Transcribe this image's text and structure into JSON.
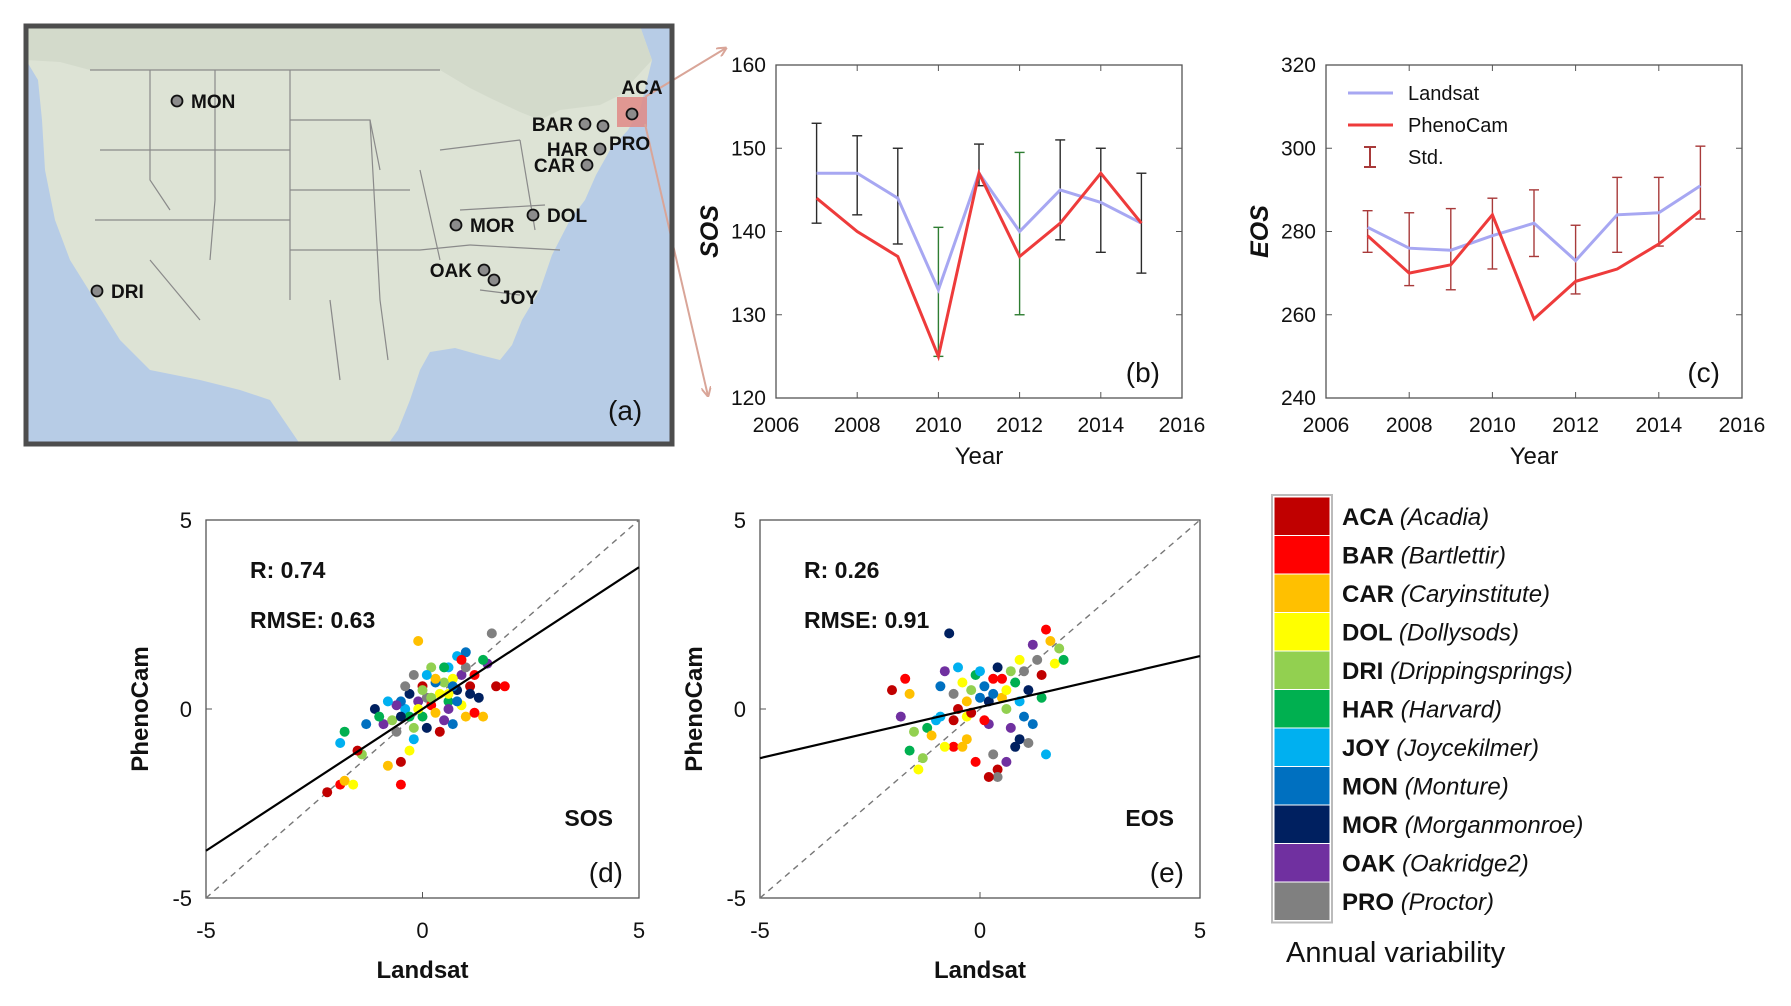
{
  "map": {
    "panel_label": "(a)",
    "sites": [
      {
        "code": "MON"
      },
      {
        "code": "ACA"
      },
      {
        "code": "BAR"
      },
      {
        "code": "PRO"
      },
      {
        "code": "HAR"
      },
      {
        "code": "CAR"
      },
      {
        "code": "MOR"
      },
      {
        "code": "DOL"
      },
      {
        "code": "OAK"
      },
      {
        "code": "JOY"
      },
      {
        "code": "DRI"
      }
    ]
  },
  "chart_data": [
    {
      "id": "b",
      "type": "line",
      "panel_label": "(b)",
      "xlabel": "Year",
      "ylabel": "SOS",
      "xlim": [
        2006,
        2016
      ],
      "ylim": [
        120,
        160
      ],
      "xticks": [
        "2006",
        "2008",
        "2010",
        "2012",
        "2014",
        "2016"
      ],
      "yticks": [
        "120",
        "130",
        "140",
        "150",
        "160"
      ],
      "x": [
        2007,
        2008,
        2009,
        2010,
        2011,
        2012,
        2013,
        2014,
        2015
      ],
      "series": [
        {
          "name": "Landsat",
          "color": "#a7a7f2",
          "values": [
            147,
            147,
            144,
            133,
            147,
            140,
            145,
            143.5,
            141
          ]
        },
        {
          "name": "PhenoCam",
          "color": "#ee3b3b",
          "values": [
            144,
            140,
            137,
            125,
            147,
            137,
            141,
            147,
            141
          ]
        }
      ],
      "errorbars": {
        "color": "#2a2a2a",
        "low": [
          141,
          142,
          138.5,
          125,
          145.5,
          130,
          139,
          137.5,
          135
        ],
        "high": [
          153,
          151.5,
          150,
          140.5,
          150.5,
          149.5,
          151,
          150,
          147
        ]
      }
    },
    {
      "id": "c",
      "type": "line",
      "panel_label": "(c)",
      "xlabel": "Year",
      "ylabel": "EOS",
      "xlim": [
        2006,
        2016
      ],
      "ylim": [
        240,
        320
      ],
      "xticks": [
        "2006",
        "2008",
        "2010",
        "2012",
        "2014",
        "2016"
      ],
      "yticks": [
        "240",
        "260",
        "280",
        "300",
        "320"
      ],
      "x": [
        2007,
        2008,
        2009,
        2010,
        2011,
        2012,
        2013,
        2014,
        2015
      ],
      "series": [
        {
          "name": "Landsat",
          "color": "#a7a7f2",
          "values": [
            281,
            276,
            275.5,
            279,
            282,
            273,
            284,
            284.5,
            291
          ]
        },
        {
          "name": "PhenoCam",
          "color": "#ee3b3b",
          "values": [
            279,
            270,
            272,
            284,
            259,
            268,
            271,
            277,
            285
          ]
        }
      ],
      "errorbars": {
        "color": "#a83a3a",
        "low": [
          275,
          267,
          266,
          271,
          274,
          265,
          275,
          276.5,
          283
        ],
        "high": [
          285,
          284.5,
          285.5,
          288,
          290,
          281.5,
          293,
          293,
          300.5
        ]
      },
      "legend": {
        "position": "top-left",
        "entries": [
          "Landsat",
          "PhenoCam",
          "Std."
        ]
      }
    },
    {
      "id": "d",
      "type": "scatter",
      "panel_label": "(d)",
      "variable": "SOS",
      "xlabel": "Landsat",
      "ylabel": "PhenoCam",
      "xlim": [
        -5,
        5
      ],
      "ylim": [
        -5,
        5
      ],
      "xticks": [
        "-5",
        "0",
        "5"
      ],
      "yticks": [
        "-5",
        "0",
        "5"
      ],
      "r_text": "R: 0.74",
      "rmse_text": "RMSE: 0.63",
      "fit_line": {
        "x": [
          -5,
          5
        ],
        "y": [
          -3.75,
          3.75
        ]
      },
      "one_to_one": {
        "x": [
          -5,
          5
        ],
        "y": [
          -5,
          5
        ]
      },
      "points": [
        [
          -2.2,
          -2.2
        ],
        [
          -1.9,
          -2.0
        ],
        [
          -1.8,
          -1.9
        ],
        [
          -1.6,
          -2.0
        ],
        [
          -1.4,
          -1.2
        ],
        [
          -1.8,
          -0.6
        ],
        [
          -1.9,
          -0.9
        ],
        [
          -1.3,
          -0.4
        ],
        [
          -1.1,
          0.0
        ],
        [
          -0.9,
          -0.4
        ],
        [
          -0.6,
          -0.6
        ],
        [
          -0.5,
          -1.4
        ],
        [
          -0.5,
          -2.0
        ],
        [
          -0.8,
          -1.5
        ],
        [
          -0.3,
          -1.1
        ],
        [
          -0.2,
          -0.5
        ],
        [
          0.0,
          -0.2
        ],
        [
          -0.4,
          0.0
        ],
        [
          -0.5,
          0.2
        ],
        [
          -0.3,
          0.4
        ],
        [
          -0.1,
          0.2
        ],
        [
          0.1,
          0.3
        ],
        [
          0.0,
          0.6
        ],
        [
          0.2,
          0.1
        ],
        [
          0.3,
          -0.1
        ],
        [
          0.4,
          0.4
        ],
        [
          0.5,
          0.7
        ],
        [
          0.6,
          0.2
        ],
        [
          0.6,
          1.1
        ],
        [
          0.7,
          -0.4
        ],
        [
          0.8,
          0.5
        ],
        [
          0.9,
          0.9
        ],
        [
          1.0,
          1.1
        ],
        [
          1.1,
          0.6
        ],
        [
          1.2,
          0.9
        ],
        [
          1.0,
          -0.2
        ],
        [
          0.7,
          0.8
        ],
        [
          0.2,
          1.1
        ],
        [
          0.5,
          1.1
        ],
        [
          0.8,
          1.4
        ],
        [
          1.0,
          1.5
        ],
        [
          1.3,
          0.3
        ],
        [
          1.5,
          1.2
        ],
        [
          1.6,
          2.0
        ],
        [
          1.7,
          0.6
        ],
        [
          1.9,
          0.6
        ],
        [
          1.4,
          -0.2
        ],
        [
          0.9,
          0.1
        ],
        [
          -0.7,
          -0.3
        ],
        [
          -1.0,
          -0.2
        ],
        [
          -0.2,
          -0.8
        ],
        [
          0.3,
          0.7
        ],
        [
          0.1,
          -0.5
        ],
        [
          -0.6,
          0.1
        ],
        [
          -0.2,
          0.9
        ],
        [
          0.4,
          -0.6
        ],
        [
          1.2,
          -0.1
        ],
        [
          -0.1,
          1.8
        ],
        [
          0.6,
          0.4
        ],
        [
          0.2,
          0.3
        ],
        [
          -0.3,
          -0.2
        ],
        [
          -0.8,
          0.2
        ],
        [
          0.8,
          0.2
        ],
        [
          1.1,
          0.4
        ],
        [
          0.5,
          -0.3
        ],
        [
          -0.4,
          0.6
        ],
        [
          -1.5,
          -1.1
        ],
        [
          0.9,
          1.3
        ],
        [
          0.3,
          0.8
        ],
        [
          -0.1,
          0.0
        ],
        [
          0.0,
          0.5
        ],
        [
          1.4,
          1.3
        ],
        [
          0.1,
          0.9
        ],
        [
          0.7,
          0.6
        ],
        [
          -0.5,
          -0.2
        ],
        [
          0.6,
          0.0
        ]
      ]
    },
    {
      "id": "e",
      "type": "scatter",
      "panel_label": "(e)",
      "variable": "EOS",
      "xlabel": "Landsat",
      "ylabel": "PhenoCam",
      "xlim": [
        -5,
        5
      ],
      "ylim": [
        -5,
        5
      ],
      "xticks": [
        "-5",
        "0",
        "5"
      ],
      "yticks": [
        "-5",
        "0",
        "5"
      ],
      "r_text": "R: 0.26",
      "rmse_text": "RMSE: 0.91",
      "fit_line": {
        "x": [
          -5,
          5
        ],
        "y": [
          -1.3,
          1.4
        ]
      },
      "one_to_one": {
        "x": [
          -5,
          5
        ],
        "y": [
          -5,
          5
        ]
      },
      "points": [
        [
          -2.0,
          0.5
        ],
        [
          -1.7,
          0.8
        ],
        [
          -1.6,
          0.4
        ],
        [
          -1.4,
          -1.6
        ],
        [
          -1.5,
          -0.6
        ],
        [
          -1.2,
          -0.5
        ],
        [
          -1.0,
          -0.3
        ],
        [
          -0.9,
          0.6
        ],
        [
          -0.7,
          2.0
        ],
        [
          -0.8,
          1.0
        ],
        [
          -0.6,
          0.4
        ],
        [
          -0.5,
          0.0
        ],
        [
          -0.6,
          -1.0
        ],
        [
          -0.4,
          -1.0
        ],
        [
          -0.3,
          -0.2
        ],
        [
          -0.2,
          0.5
        ],
        [
          -0.1,
          0.9
        ],
        [
          0.0,
          1.0
        ],
        [
          0.1,
          0.6
        ],
        [
          0.2,
          0.2
        ],
        [
          0.2,
          -0.4
        ],
        [
          0.3,
          -1.2
        ],
        [
          0.4,
          -1.6
        ],
        [
          0.3,
          0.8
        ],
        [
          0.5,
          0.3
        ],
        [
          0.6,
          0.5
        ],
        [
          0.7,
          1.0
        ],
        [
          0.8,
          0.7
        ],
        [
          0.9,
          0.2
        ],
        [
          1.0,
          -0.2
        ],
        [
          1.1,
          0.5
        ],
        [
          1.2,
          1.7
        ],
        [
          1.3,
          1.3
        ],
        [
          1.4,
          0.9
        ],
        [
          1.5,
          2.1
        ],
        [
          1.6,
          1.8
        ],
        [
          1.7,
          1.2
        ],
        [
          1.8,
          1.6
        ],
        [
          1.9,
          1.3
        ],
        [
          1.5,
          -1.2
        ],
        [
          1.2,
          -0.4
        ],
        [
          0.9,
          -0.8
        ],
        [
          0.6,
          -1.4
        ],
        [
          0.4,
          -1.8
        ],
        [
          0.2,
          -1.8
        ],
        [
          -0.1,
          -1.4
        ],
        [
          -0.3,
          -0.8
        ],
        [
          -0.8,
          -1.0
        ],
        [
          -1.3,
          -1.3
        ],
        [
          -1.6,
          -1.1
        ],
        [
          -0.5,
          1.1
        ],
        [
          0.0,
          0.3
        ],
        [
          0.4,
          1.1
        ],
        [
          0.7,
          -0.5
        ],
        [
          1.0,
          1.0
        ],
        [
          -0.2,
          -0.1
        ],
        [
          0.1,
          -0.3
        ],
        [
          -1.1,
          -0.7
        ],
        [
          -0.4,
          0.7
        ],
        [
          0.6,
          0.0
        ],
        [
          1.4,
          0.3
        ],
        [
          -0.9,
          -0.2
        ],
        [
          0.3,
          0.4
        ],
        [
          0.8,
          -1.0
        ],
        [
          -1.8,
          -0.2
        ],
        [
          1.1,
          -0.9
        ],
        [
          -0.6,
          -0.3
        ],
        [
          0.5,
          0.8
        ],
        [
          -0.3,
          0.2
        ],
        [
          0.9,
          1.3
        ]
      ]
    }
  ],
  "legend_sites": {
    "title": "Annual variability",
    "items": [
      {
        "code": "ACA",
        "name": "(Acadia)",
        "color": "#c00000"
      },
      {
        "code": "BAR",
        "name": "(Bartlettir)",
        "color": "#ff0000"
      },
      {
        "code": "CAR",
        "name": "(Caryinstitute)",
        "color": "#ffc000"
      },
      {
        "code": "DOL",
        "name": "(Dollysods)",
        "color": "#ffff00"
      },
      {
        "code": "DRI",
        "name": "(Drippingsprings)",
        "color": "#92d050"
      },
      {
        "code": "HAR",
        "name": "(Harvard)",
        "color": "#00b050"
      },
      {
        "code": "JOY",
        "name": "(Joycekilmer)",
        "color": "#00b0f0"
      },
      {
        "code": "MON",
        "name": "(Monture)",
        "color": "#0070c0"
      },
      {
        "code": "MOR",
        "name": "(Morganmonroe)",
        "color": "#002060"
      },
      {
        "code": "OAK",
        "name": "(Oakridge2)",
        "color": "#7030a0"
      },
      {
        "code": "PRO",
        "name": "(Proctor)",
        "color": "#808080"
      }
    ]
  }
}
